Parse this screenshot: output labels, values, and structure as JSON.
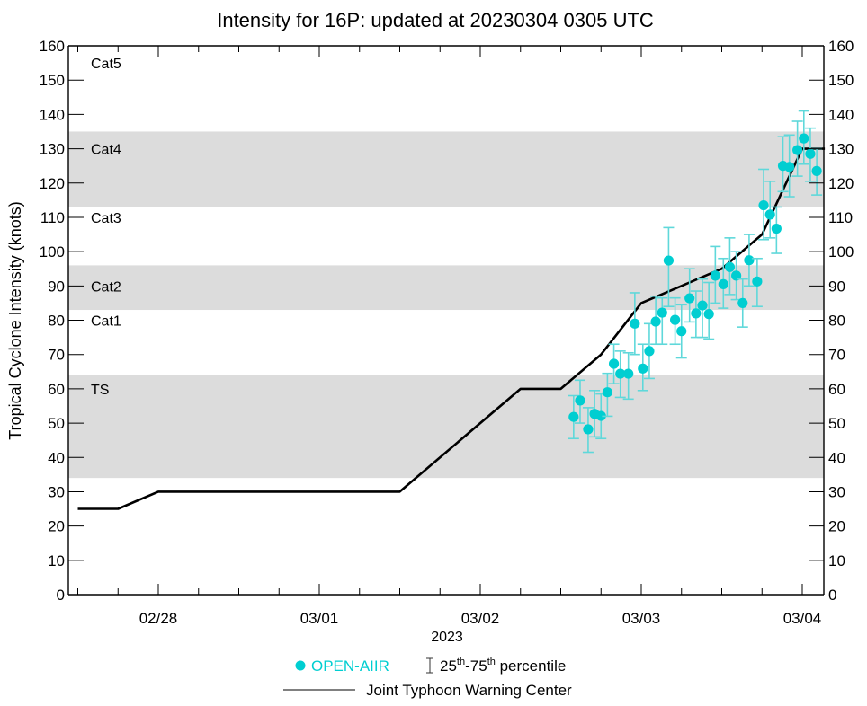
{
  "chart_data": {
    "type": "scatter",
    "title": "Intensity for 16P: updated at 20230304 0305 UTC",
    "xlabel": "2023",
    "ylabel": "Tropical Cyclone Intensity (knots)",
    "ylim": [
      0,
      160
    ],
    "yticks": [
      0,
      10,
      20,
      30,
      40,
      50,
      60,
      70,
      80,
      90,
      100,
      110,
      120,
      130,
      140,
      150,
      160
    ],
    "x_unit": "days since 02/28 00Z",
    "xlim": [
      -0.56,
      4.14
    ],
    "xticks": [
      {
        "pos": 0,
        "label": "02/28"
      },
      {
        "pos": 1,
        "label": "03/01"
      },
      {
        "pos": 2,
        "label": "03/02"
      },
      {
        "pos": 3,
        "label": "03/03"
      },
      {
        "pos": 4,
        "label": "03/04"
      }
    ],
    "minor_xtick_step_days": 0.25,
    "grid": false,
    "category_bands": [
      {
        "label": "TS",
        "from": 34,
        "to": 64,
        "shaded": true
      },
      {
        "label": "Cat1",
        "from": 64,
        "to": 83,
        "shaded": false
      },
      {
        "label": "Cat2",
        "from": 83,
        "to": 96,
        "shaded": true
      },
      {
        "label": "Cat3",
        "from": 96,
        "to": 113,
        "shaded": false
      },
      {
        "label": "Cat4",
        "from": 113,
        "to": 135,
        "shaded": true
      },
      {
        "label": "Cat5",
        "from": 135,
        "to": 160,
        "shaded": false
      }
    ],
    "series": [
      {
        "name": "Joint Typhoon Warning Center",
        "kind": "line",
        "color": "#000000",
        "points": [
          [
            -0.5,
            25
          ],
          [
            -0.25,
            25
          ],
          [
            0.0,
            30
          ],
          [
            1.5,
            30
          ],
          [
            2.25,
            60
          ],
          [
            2.5,
            60
          ],
          [
            2.75,
            70
          ],
          [
            3.0,
            85
          ],
          [
            3.25,
            90
          ],
          [
            3.5,
            95
          ],
          [
            3.75,
            105
          ],
          [
            4.0,
            130
          ],
          [
            4.14,
            130
          ]
        ]
      },
      {
        "name": "OPEN-AIIR",
        "kind": "scatter_errorbar",
        "color": "#00CED1",
        "errorbar_label": "25th-75th percentile",
        "points": [
          {
            "x": 2.58,
            "y": 51.8,
            "lo": 45.5,
            "hi": 58.0
          },
          {
            "x": 2.62,
            "y": 56.6,
            "lo": 50.0,
            "hi": 62.5
          },
          {
            "x": 2.67,
            "y": 48.2,
            "lo": 41.5,
            "hi": 54.5
          },
          {
            "x": 2.71,
            "y": 52.7,
            "lo": 46.0,
            "hi": 59.5
          },
          {
            "x": 2.75,
            "y": 52.1,
            "lo": 45.5,
            "hi": 58.5
          },
          {
            "x": 2.79,
            "y": 59.0,
            "lo": 52.0,
            "hi": 64.5
          },
          {
            "x": 2.83,
            "y": 67.3,
            "lo": 61.5,
            "hi": 73.0
          },
          {
            "x": 2.87,
            "y": 64.4,
            "lo": 57.5,
            "hi": 71.0
          },
          {
            "x": 2.92,
            "y": 64.4,
            "lo": 57.0,
            "hi": 70.5
          },
          {
            "x": 2.96,
            "y": 79.0,
            "lo": 70.0,
            "hi": 88.0
          },
          {
            "x": 3.01,
            "y": 65.9,
            "lo": 59.5,
            "hi": 73.0
          },
          {
            "x": 3.05,
            "y": 71.0,
            "lo": 63.0,
            "hi": 79.0
          },
          {
            "x": 3.09,
            "y": 79.6,
            "lo": 73.0,
            "hi": 87.0
          },
          {
            "x": 3.13,
            "y": 82.2,
            "lo": 73.0,
            "hi": 86.5
          },
          {
            "x": 3.17,
            "y": 97.4,
            "lo": 84.0,
            "hi": 107.0
          },
          {
            "x": 3.21,
            "y": 80.1,
            "lo": 73.0,
            "hi": 86.5
          },
          {
            "x": 3.25,
            "y": 76.8,
            "lo": 69.0,
            "hi": 84.5
          },
          {
            "x": 3.3,
            "y": 86.4,
            "lo": 79.5,
            "hi": 95.0
          },
          {
            "x": 3.34,
            "y": 82.0,
            "lo": 75.0,
            "hi": 88.5
          },
          {
            "x": 3.38,
            "y": 84.3,
            "lo": 75.0,
            "hi": 92.0
          },
          {
            "x": 3.42,
            "y": 81.8,
            "lo": 74.5,
            "hi": 91.0
          },
          {
            "x": 3.46,
            "y": 93.0,
            "lo": 85.0,
            "hi": 101.5
          },
          {
            "x": 3.51,
            "y": 90.5,
            "lo": 83.5,
            "hi": 98.0
          },
          {
            "x": 3.55,
            "y": 95.5,
            "lo": 87.5,
            "hi": 104.0
          },
          {
            "x": 3.59,
            "y": 93.0,
            "lo": 86.0,
            "hi": 100.0
          },
          {
            "x": 3.63,
            "y": 85.0,
            "lo": 78.0,
            "hi": 92.0
          },
          {
            "x": 3.67,
            "y": 97.5,
            "lo": 90.0,
            "hi": 105.0
          },
          {
            "x": 3.72,
            "y": 91.3,
            "lo": 84.0,
            "hi": 98.0
          },
          {
            "x": 3.76,
            "y": 113.5,
            "lo": 103.5,
            "hi": 124.0
          },
          {
            "x": 3.8,
            "y": 110.8,
            "lo": 104.0,
            "hi": 120.5
          },
          {
            "x": 3.84,
            "y": 106.7,
            "lo": 99.5,
            "hi": 113.0
          },
          {
            "x": 3.88,
            "y": 125.0,
            "lo": 117.5,
            "hi": 133.5
          },
          {
            "x": 3.92,
            "y": 124.7,
            "lo": 116.0,
            "hi": 134.0
          },
          {
            "x": 3.97,
            "y": 129.6,
            "lo": 122.0,
            "hi": 138.0
          },
          {
            "x": 4.01,
            "y": 133.0,
            "lo": 125.5,
            "hi": 141.0
          },
          {
            "x": 4.05,
            "y": 128.5,
            "lo": 120.5,
            "hi": 136.0
          },
          {
            "x": 4.09,
            "y": 123.5,
            "lo": 116.5,
            "hi": 130.0
          }
        ]
      }
    ],
    "legend": {
      "placement": "bottom-center",
      "entries": [
        {
          "label": "OPEN-AIIR",
          "marker": "dot",
          "color": "#00CED1"
        },
        {
          "label": "25th-75th percentile",
          "marker": "errorbar",
          "sup": [
            "th",
            "th"
          ],
          "parts": [
            "25",
            "-75",
            " percentile"
          ]
        },
        {
          "label": "Joint Typhoon Warning Center",
          "marker": "line",
          "color": "#000000"
        }
      ]
    }
  },
  "colors": {
    "band_shade": "#DCDCDC",
    "axis": "#000000"
  }
}
